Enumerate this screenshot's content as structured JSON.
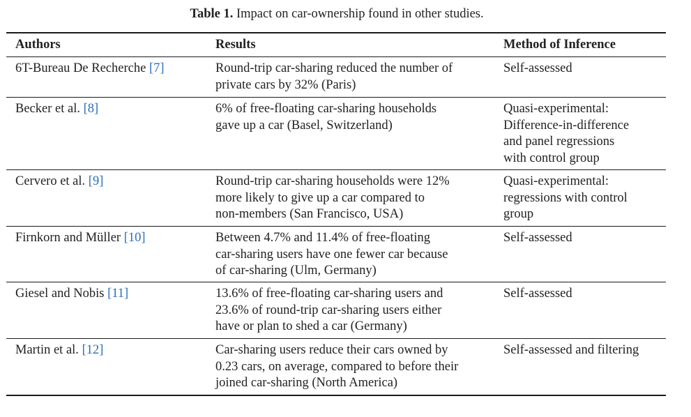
{
  "caption": {
    "label": "Table 1.",
    "text": "Impact on car-ownership found in other studies."
  },
  "table": {
    "headers": [
      "Authors",
      "Results",
      "Method of Inference"
    ],
    "rows": [
      {
        "author": "6T-Bureau De Recherche",
        "ref": "[7]",
        "results": [
          "Round-trip car-sharing reduced the number of",
          "private cars by 32% (Paris)"
        ],
        "method": [
          "Self-assessed"
        ]
      },
      {
        "author": "Becker et al.",
        "ref": "[8]",
        "results": [
          "6% of free-floating car-sharing households",
          "gave up a car (Basel, Switzerland)"
        ],
        "method": [
          "Quasi-experimental:",
          "Difference-in-difference",
          "and panel regressions",
          "with control group"
        ]
      },
      {
        "author": "Cervero et al.",
        "ref": "[9]",
        "results": [
          "Round-trip car-sharing households were 12%",
          "more likely to give up a car compared to",
          "non-members (San Francisco, USA)"
        ],
        "method": [
          "Quasi-experimental:",
          "regressions with control",
          "group"
        ]
      },
      {
        "author": "Firnkorn and Müller",
        "ref": "[10]",
        "results": [
          "Between 4.7% and 11.4% of free-floating",
          "car-sharing users have one fewer car because",
          "of car-sharing (Ulm, Germany)"
        ],
        "method": [
          "Self-assessed"
        ]
      },
      {
        "author": "Giesel and Nobis",
        "ref": "[11]",
        "results": [
          "13.6% of free-floating car-sharing users and",
          "23.6% of round-trip car-sharing users either",
          "have or plan to shed a car (Germany)"
        ],
        "method": [
          "Self-assessed"
        ]
      },
      {
        "author": "Martin et al.",
        "ref": "[12]",
        "results": [
          "Car-sharing users reduce their cars owned by",
          "0.23 cars, on average, compared to before their",
          "joined car-sharing (North America)"
        ],
        "method": [
          "Self-assessed and filtering"
        ]
      }
    ]
  }
}
